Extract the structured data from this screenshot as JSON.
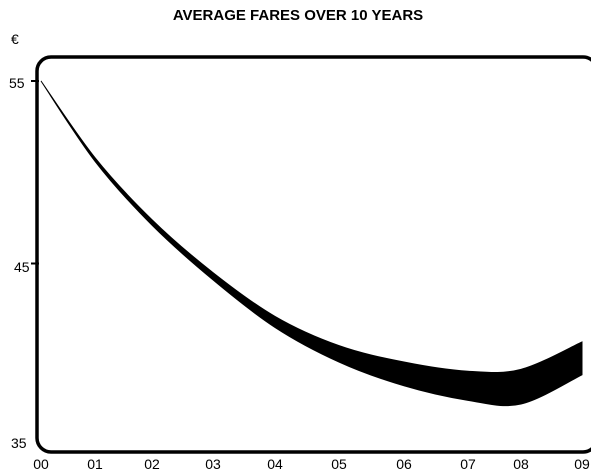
{
  "chart_data": {
    "type": "area",
    "title": "AVERAGE FARES OVER 10 YEARS",
    "ylabel": "€",
    "xlabel": "",
    "categories": [
      "00",
      "01",
      "02",
      "03",
      "04",
      "05",
      "06",
      "07",
      "08",
      "09"
    ],
    "y_ticks": [
      "55",
      "45",
      "35"
    ],
    "ylim": [
      35,
      56
    ],
    "grid": false,
    "legend": "none",
    "band_color": "#000000",
    "series": [
      {
        "values": [
          55,
          50.8,
          47.4,
          44.5,
          42.1,
          40.5,
          39.6,
          39.1,
          39.2,
          40.7
        ]
      },
      {
        "values": [
          55,
          50.6,
          47.1,
          44.1,
          41.5,
          39.6,
          38.3,
          37.5,
          37.3,
          38.9
        ]
      }
    ]
  }
}
